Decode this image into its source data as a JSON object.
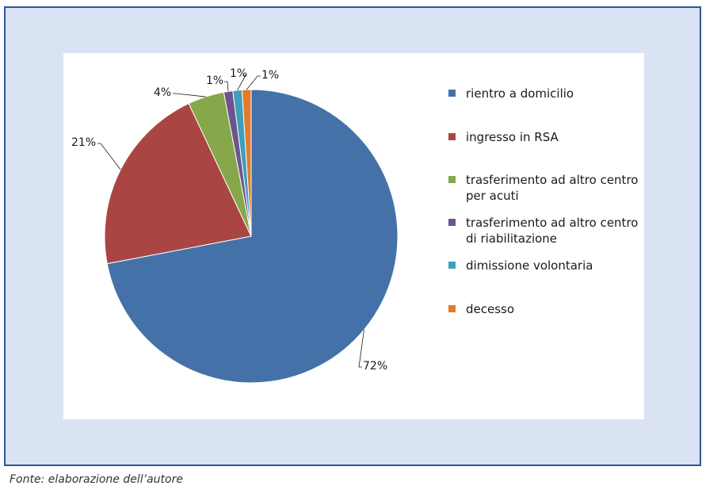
{
  "chart_data": {
    "type": "pie",
    "title": "",
    "categories": [
      "rientro a domicilio",
      "ingresso in RSA",
      "trasferimento ad altro centro per acuti",
      "trasferimento ad altro centro di riabilitazione",
      "dimissione volontaria",
      "decesso"
    ],
    "values": [
      72,
      21,
      4,
      1,
      1,
      1
    ],
    "data_labels": [
      "72%",
      "21%",
      "4%",
      "1%",
      "1%",
      "1%"
    ],
    "colors": [
      "#4472a8",
      "#a94643",
      "#86a84a",
      "#6e548d",
      "#3d9fbb",
      "#e07b2f"
    ],
    "legend_position": "right"
  },
  "legend": {
    "items": [
      {
        "label": "rientro a domicilio",
        "color": "#4472a8"
      },
      {
        "label": "ingresso in RSA",
        "color": "#a94643"
      },
      {
        "label": "trasferimento ad altro centro per acuti",
        "color": "#86a84a"
      },
      {
        "label": "trasferimento ad altro centro di riabilitazione",
        "color": "#6e548d"
      },
      {
        "label": "dimissione volontaria",
        "color": "#3d9fbb"
      },
      {
        "label": "decesso",
        "color": "#e07b2f"
      }
    ]
  },
  "source_note": "Fonte: elaborazione dell’autore"
}
